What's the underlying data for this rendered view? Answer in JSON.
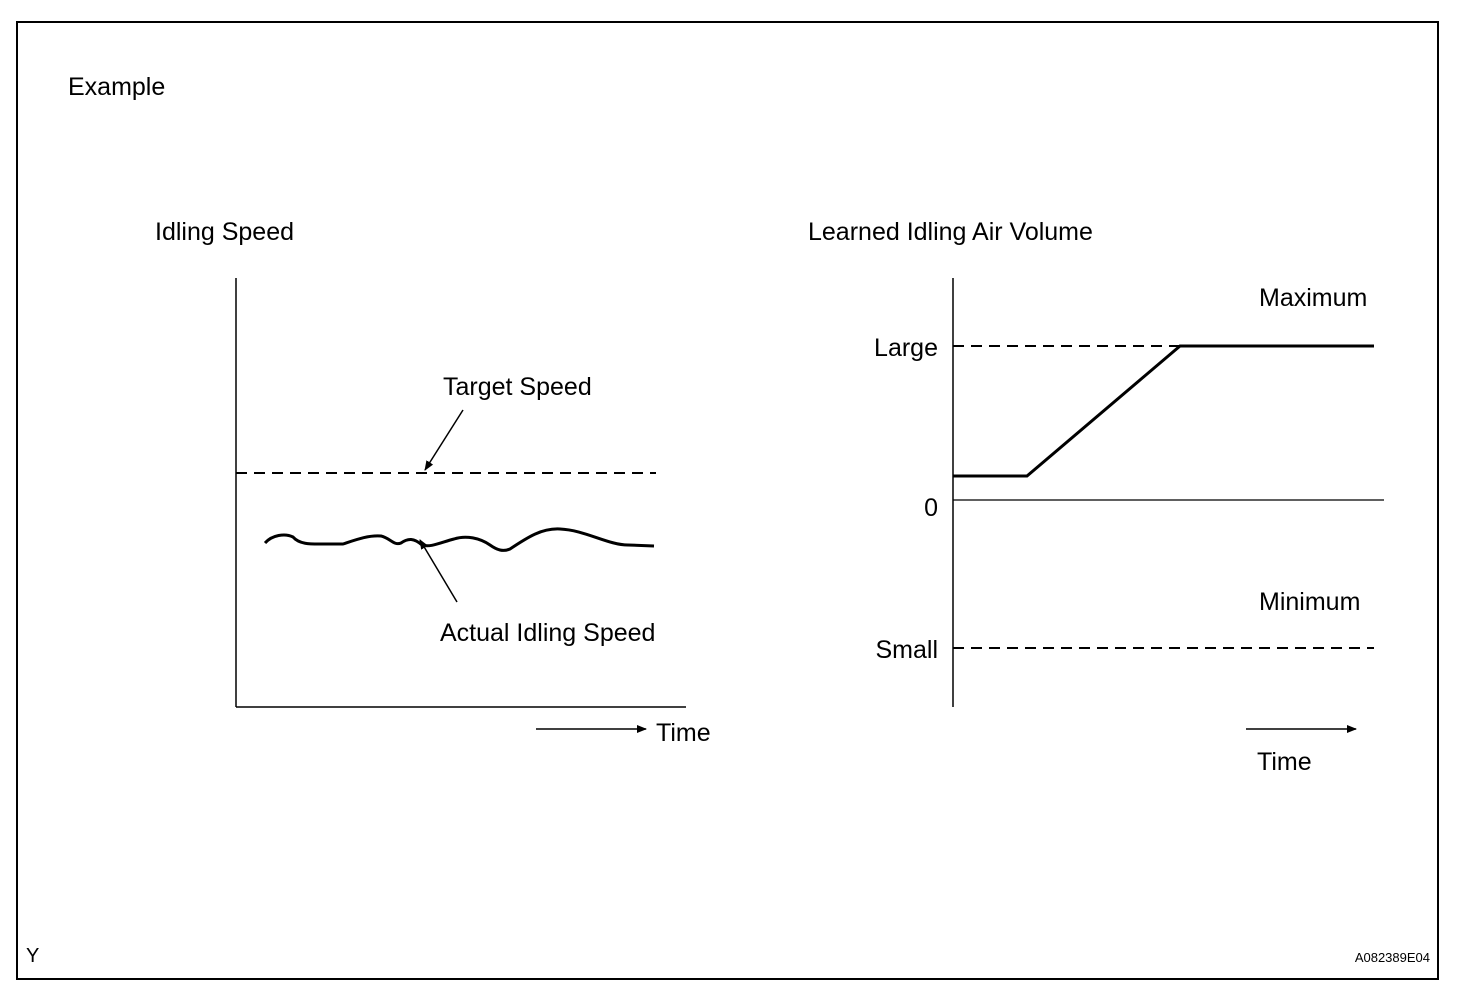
{
  "header": {
    "label": "Example"
  },
  "left_chart": {
    "title": "Idling Speed",
    "target_label": "Target Speed",
    "actual_label": "Actual Idling Speed",
    "time_label": "Time"
  },
  "right_chart": {
    "title": "Learned Idling Air Volume",
    "max_label": "Maximum",
    "min_label": "Minimum",
    "large_label": "Large",
    "zero_label": "0",
    "small_label": "Small",
    "time_label": "Time"
  },
  "footer": {
    "left_code": "Y",
    "right_code": "A082389E04"
  }
}
